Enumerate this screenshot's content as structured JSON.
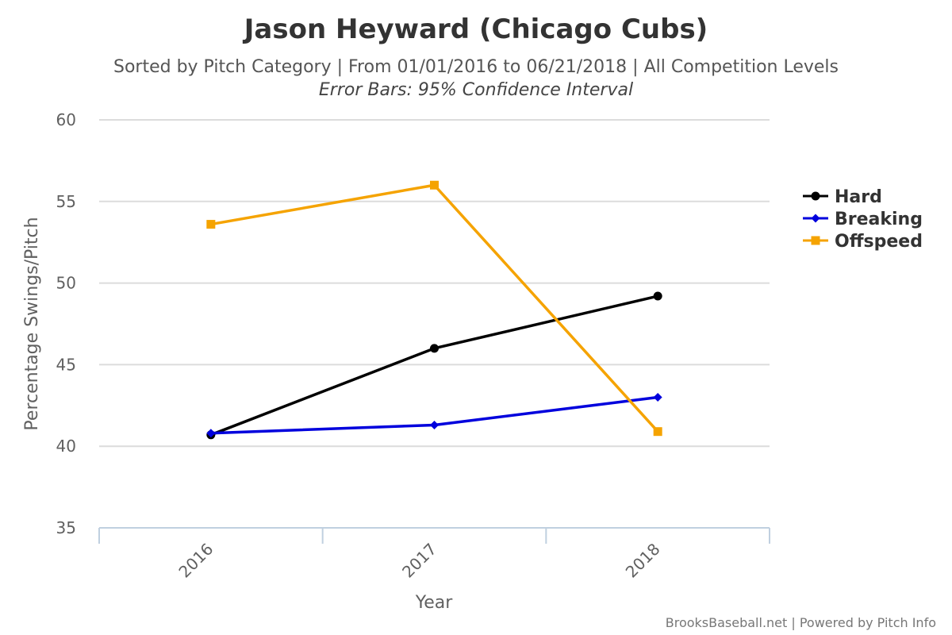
{
  "chart_data": {
    "type": "line",
    "title": "Jason Heyward (Chicago Cubs)",
    "subtitle": "Sorted by Pitch Category | From 01/01/2016 to 06/21/2018 | All Competition Levels",
    "note": "Error Bars: 95% Confidence Interval",
    "xlabel": "Year",
    "ylabel": "Percentage Swings/Pitch",
    "categories": [
      "2016",
      "2017",
      "2018"
    ],
    "ylim": [
      35,
      60
    ],
    "yticks": [
      35,
      40,
      45,
      50,
      55,
      60
    ],
    "grid": true,
    "legend_position": "right",
    "series": [
      {
        "name": "Hard",
        "color": "#000000",
        "marker": "circle",
        "values": [
          40.7,
          46.0,
          49.2
        ]
      },
      {
        "name": "Breaking",
        "color": "#0000dd",
        "marker": "diamond",
        "values": [
          40.8,
          41.3,
          43.0
        ]
      },
      {
        "name": "Offspeed",
        "color": "#f5a300",
        "marker": "square",
        "values": [
          53.6,
          56.0,
          40.9
        ]
      }
    ]
  },
  "credits": "BrooksBaseball.net | Powered by Pitch Info"
}
